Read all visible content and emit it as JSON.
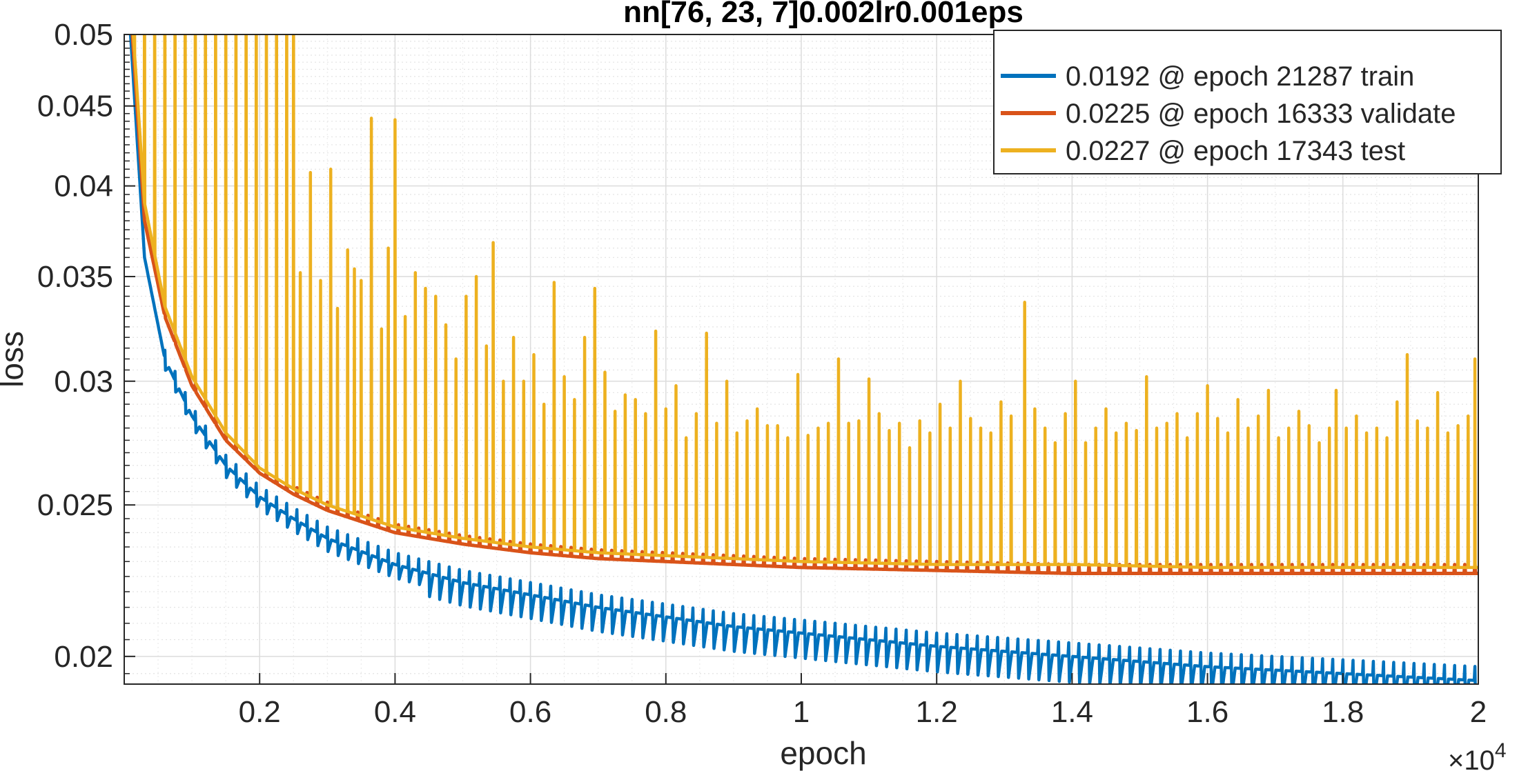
{
  "chart_data": {
    "type": "line",
    "title": "nn[76, 23, 7]0.002lr0.001eps",
    "xlabel": "epoch",
    "ylabel": "loss",
    "x_exponent_label": "×10",
    "x_exponent_power": "4",
    "xlim": [
      0,
      20000
    ],
    "ylim": [
      0.0192,
      0.05
    ],
    "yscale": "log",
    "grid": true,
    "minor_grid": true,
    "legend_position": "top-right",
    "x_ticks": [
      {
        "value": 2000,
        "label": "0.2"
      },
      {
        "value": 4000,
        "label": "0.4"
      },
      {
        "value": 6000,
        "label": "0.6"
      },
      {
        "value": 8000,
        "label": "0.8"
      },
      {
        "value": 10000,
        "label": "1"
      },
      {
        "value": 12000,
        "label": "1.2"
      },
      {
        "value": 14000,
        "label": "1.4"
      },
      {
        "value": 16000,
        "label": "1.6"
      },
      {
        "value": 18000,
        "label": "1.8"
      },
      {
        "value": 20000,
        "label": "2"
      }
    ],
    "y_ticks": [
      {
        "value": 0.02,
        "label": "0.02"
      },
      {
        "value": 0.025,
        "label": "0.025"
      },
      {
        "value": 0.03,
        "label": "0.03"
      },
      {
        "value": 0.035,
        "label": "0.035"
      },
      {
        "value": 0.04,
        "label": "0.04"
      },
      {
        "value": 0.045,
        "label": "0.045"
      },
      {
        "value": 0.05,
        "label": "0.05"
      }
    ],
    "spike_period": 150,
    "series": [
      {
        "name": "0.0192 @ epoch 21287 train",
        "color": "#0072BD",
        "baseline": [
          [
            0,
            0.058
          ],
          [
            300,
            0.036
          ],
          [
            600,
            0.031
          ],
          [
            1000,
            0.0285
          ],
          [
            1500,
            0.0265
          ],
          [
            2000,
            0.0253
          ],
          [
            2500,
            0.0245
          ],
          [
            3000,
            0.0238
          ],
          [
            4000,
            0.0229
          ],
          [
            5000,
            0.0223
          ],
          [
            6000,
            0.0219
          ],
          [
            7000,
            0.0215
          ],
          [
            8000,
            0.0212
          ],
          [
            9000,
            0.0209
          ],
          [
            10000,
            0.0207
          ],
          [
            12000,
            0.0203
          ],
          [
            14000,
            0.02
          ],
          [
            16000,
            0.0197
          ],
          [
            18000,
            0.0195
          ],
          [
            20000,
            0.0193
          ]
        ],
        "notch_depth": 0.0009
      },
      {
        "name": "0.0225 @ epoch 16333 validate",
        "color": "#D95319",
        "baseline": [
          [
            0,
            0.06
          ],
          [
            300,
            0.038
          ],
          [
            600,
            0.033
          ],
          [
            1000,
            0.0298
          ],
          [
            1500,
            0.0275
          ],
          [
            2000,
            0.0262
          ],
          [
            2500,
            0.0254
          ],
          [
            3000,
            0.0248
          ],
          [
            4000,
            0.024
          ],
          [
            5000,
            0.0236
          ],
          [
            6000,
            0.0233
          ],
          [
            7000,
            0.0231
          ],
          [
            8000,
            0.023
          ],
          [
            9000,
            0.0229
          ],
          [
            10000,
            0.0228
          ],
          [
            12000,
            0.0227
          ],
          [
            14000,
            0.0226
          ],
          [
            16000,
            0.0226
          ],
          [
            18000,
            0.0226
          ],
          [
            20000,
            0.0226
          ]
        ]
      },
      {
        "name": "0.0227 @ epoch 17343 test",
        "color": "#EDB120",
        "baseline": [
          [
            0,
            0.061
          ],
          [
            300,
            0.039
          ],
          [
            600,
            0.0335
          ],
          [
            1000,
            0.0302
          ],
          [
            1500,
            0.0278
          ],
          [
            2000,
            0.0264
          ],
          [
            2500,
            0.0256
          ],
          [
            3000,
            0.025
          ],
          [
            4000,
            0.0242
          ],
          [
            5000,
            0.0238
          ],
          [
            6000,
            0.0235
          ],
          [
            7000,
            0.0233
          ],
          [
            8000,
            0.0232
          ],
          [
            9000,
            0.0231
          ],
          [
            10000,
            0.023
          ],
          [
            12000,
            0.0229
          ],
          [
            14000,
            0.0229
          ],
          [
            16000,
            0.0228
          ],
          [
            18000,
            0.0228
          ],
          [
            20000,
            0.0228
          ]
        ],
        "spikes": [
          [
            150,
            0.06
          ],
          [
            300,
            0.06
          ],
          [
            450,
            0.06
          ],
          [
            600,
            0.06
          ],
          [
            750,
            0.06
          ],
          [
            900,
            0.06
          ],
          [
            1050,
            0.06
          ],
          [
            1200,
            0.06
          ],
          [
            1350,
            0.06
          ],
          [
            1500,
            0.06
          ],
          [
            1650,
            0.06
          ],
          [
            1800,
            0.06
          ],
          [
            1950,
            0.06
          ],
          [
            2100,
            0.06
          ],
          [
            2250,
            0.06
          ],
          [
            2400,
            0.06
          ],
          [
            2500,
            0.06
          ],
          [
            2600,
            0.0352
          ],
          [
            2750,
            0.0408
          ],
          [
            2900,
            0.0348
          ],
          [
            3050,
            0.041
          ],
          [
            3150,
            0.0334
          ],
          [
            3300,
            0.0364
          ],
          [
            3400,
            0.0354
          ],
          [
            3500,
            0.0348
          ],
          [
            3650,
            0.0442
          ],
          [
            3800,
            0.0324
          ],
          [
            3900,
            0.0365
          ],
          [
            4000,
            0.0441
          ],
          [
            4150,
            0.033
          ],
          [
            4300,
            0.0352
          ],
          [
            4450,
            0.0344
          ],
          [
            4600,
            0.034
          ],
          [
            4750,
            0.0326
          ],
          [
            4900,
            0.031
          ],
          [
            5050,
            0.034
          ],
          [
            5200,
            0.035
          ],
          [
            5350,
            0.0316
          ],
          [
            5450,
            0.0368
          ],
          [
            5600,
            0.03
          ],
          [
            5750,
            0.032
          ],
          [
            5900,
            0.03
          ],
          [
            6050,
            0.0312
          ],
          [
            6200,
            0.029
          ],
          [
            6350,
            0.0347
          ],
          [
            6500,
            0.0302
          ],
          [
            6650,
            0.0292
          ],
          [
            6800,
            0.032
          ],
          [
            6950,
            0.0344
          ],
          [
            7100,
            0.0304
          ],
          [
            7250,
            0.0287
          ],
          [
            7400,
            0.0294
          ],
          [
            7550,
            0.0292
          ],
          [
            7700,
            0.0286
          ],
          [
            7850,
            0.0323
          ],
          [
            8000,
            0.0288
          ],
          [
            8150,
            0.0298
          ],
          [
            8300,
            0.0276
          ],
          [
            8450,
            0.0286
          ],
          [
            8600,
            0.0322
          ],
          [
            8750,
            0.0282
          ],
          [
            8900,
            0.03
          ],
          [
            9050,
            0.0278
          ],
          [
            9200,
            0.0283
          ],
          [
            9350,
            0.0288
          ],
          [
            9500,
            0.0281
          ],
          [
            9650,
            0.0281
          ],
          [
            9800,
            0.0276
          ],
          [
            9950,
            0.0303
          ],
          [
            10100,
            0.0277
          ],
          [
            10250,
            0.028
          ],
          [
            10400,
            0.0282
          ],
          [
            10550,
            0.031
          ],
          [
            10700,
            0.0282
          ],
          [
            10850,
            0.0283
          ],
          [
            11000,
            0.0301
          ],
          [
            11150,
            0.0286
          ],
          [
            11300,
            0.0279
          ],
          [
            11450,
            0.0282
          ],
          [
            11600,
            0.0272
          ],
          [
            11750,
            0.0283
          ],
          [
            11900,
            0.0278
          ],
          [
            12050,
            0.029
          ],
          [
            12200,
            0.028
          ],
          [
            12350,
            0.03
          ],
          [
            12500,
            0.0284
          ],
          [
            12650,
            0.028
          ],
          [
            12800,
            0.0278
          ],
          [
            12950,
            0.0291
          ],
          [
            13100,
            0.0285
          ],
          [
            13300,
            0.0337
          ],
          [
            13450,
            0.0288
          ],
          [
            13600,
            0.028
          ],
          [
            13750,
            0.0274
          ],
          [
            13900,
            0.0286
          ],
          [
            14050,
            0.03
          ],
          [
            14200,
            0.0274
          ],
          [
            14350,
            0.028
          ],
          [
            14500,
            0.0288
          ],
          [
            14650,
            0.0278
          ],
          [
            14800,
            0.0282
          ],
          [
            14950,
            0.0279
          ],
          [
            15100,
            0.0302
          ],
          [
            15250,
            0.028
          ],
          [
            15400,
            0.0282
          ],
          [
            15550,
            0.0286
          ],
          [
            15700,
            0.0276
          ],
          [
            15850,
            0.0286
          ],
          [
            16000,
            0.0298
          ],
          [
            16150,
            0.0284
          ],
          [
            16300,
            0.0278
          ],
          [
            16450,
            0.0292
          ],
          [
            16600,
            0.028
          ],
          [
            16750,
            0.0285
          ],
          [
            16900,
            0.0296
          ],
          [
            17050,
            0.0276
          ],
          [
            17200,
            0.028
          ],
          [
            17350,
            0.0287
          ],
          [
            17500,
            0.0281
          ],
          [
            17650,
            0.0274
          ],
          [
            17800,
            0.028
          ],
          [
            17900,
            0.0296
          ],
          [
            18050,
            0.028
          ],
          [
            18200,
            0.0285
          ],
          [
            18350,
            0.0278
          ],
          [
            18500,
            0.028
          ],
          [
            18650,
            0.0276
          ],
          [
            18800,
            0.0291
          ],
          [
            18950,
            0.0312
          ],
          [
            19100,
            0.0283
          ],
          [
            19250,
            0.028
          ],
          [
            19400,
            0.0295
          ],
          [
            19550,
            0.0278
          ],
          [
            19700,
            0.0281
          ],
          [
            19850,
            0.0285
          ],
          [
            19950,
            0.031
          ]
        ]
      }
    ]
  }
}
